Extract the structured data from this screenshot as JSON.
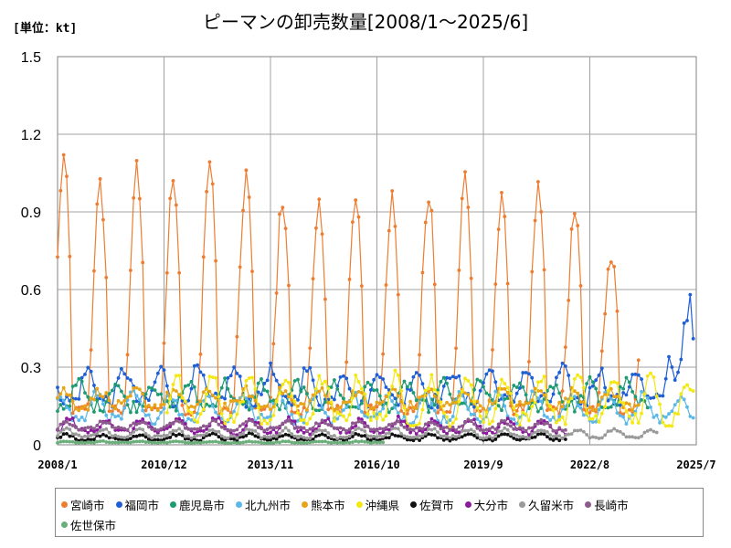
{
  "chart_data": {
    "type": "line",
    "title": "ピーマンの卸売数量[2008/1～2025/6]",
    "unit_label": "[単位：kt]",
    "ylim": [
      0,
      1.5
    ],
    "y_ticks": [
      "0",
      "0.3",
      "0.6",
      "0.9",
      "1.2",
      "1.5"
    ],
    "x_ticks": [
      "2008/1",
      "2010/12",
      "2013/11",
      "2016/10",
      "2019/9",
      "2022/8",
      "2025/7"
    ],
    "x_range": [
      "2008/1",
      "2025/7"
    ],
    "grid": true,
    "legend_position": "bottom",
    "peak_month": 4,
    "series": [
      {
        "name": "宮崎市",
        "color": "#ed7d31",
        "base": 0.15,
        "amp": 0.85,
        "noise": 0.04,
        "peak_month": 3,
        "gap_month": 6,
        "end": "2023/12",
        "peaks": [
          1.11,
          1.0,
          1.06,
          1.04,
          1.09,
          1.05,
          0.95,
          0.92,
          0.96,
          0.95,
          0.97,
          1.04,
          0.94,
          0.98,
          0.91,
          0.73
        ]
      },
      {
        "name": "福岡市",
        "color": "#1f5fd6",
        "base": 0.17,
        "amp": 0.12,
        "noise": 0.03,
        "peak_month": 11,
        "end": "2025/6",
        "tail": [
          0.34,
          0.3,
          0.25,
          0.28,
          0.33,
          0.47,
          0.48,
          0.58,
          0.41
        ]
      },
      {
        "name": "鹿児島市",
        "color": "#1d9b72",
        "base": 0.15,
        "amp": 0.09,
        "noise": 0.025,
        "peak_month": 8,
        "end": "2024/3"
      },
      {
        "name": "北九州市",
        "color": "#5bb8e8",
        "base": 0.1,
        "amp": 0.1,
        "noise": 0.02,
        "peak_month": 2,
        "end": "2025/6"
      },
      {
        "name": "熊本市",
        "color": "#e8a317",
        "base": 0.15,
        "amp": 0.06,
        "noise": 0.02,
        "peak_month": 3,
        "end": "2023/12"
      },
      {
        "name": "沖縄県",
        "color": "#f3e812",
        "base": 0.1,
        "amp": 0.16,
        "noise": 0.03,
        "peak_month": 4,
        "start": "2011/1",
        "end": "2025/6"
      },
      {
        "name": "佐賀市",
        "color": "#111111",
        "base": 0.02,
        "amp": 0.02,
        "noise": 0.005,
        "peak_month": 4,
        "end": "2021/12"
      },
      {
        "name": "大分市",
        "color": "#8a1a9b",
        "base": 0.05,
        "amp": 0.05,
        "noise": 0.012,
        "peak_month": 5,
        "end": "2021/12"
      },
      {
        "name": "久留米市",
        "color": "#9a9a9a",
        "base": 0.03,
        "amp": 0.03,
        "noise": 0.006,
        "peak_month": 4,
        "end": "2024/6"
      },
      {
        "name": "長崎市",
        "color": "#8c5a8c",
        "base": 0.06,
        "amp": 0.03,
        "noise": 0.008,
        "peak_month": 4,
        "end": "2021/12"
      },
      {
        "name": "佐世保市",
        "color": "#6aae7a",
        "base": 0.008,
        "amp": 0.005,
        "noise": 0.002,
        "peak_month": 4,
        "end": "2016/12"
      }
    ]
  }
}
